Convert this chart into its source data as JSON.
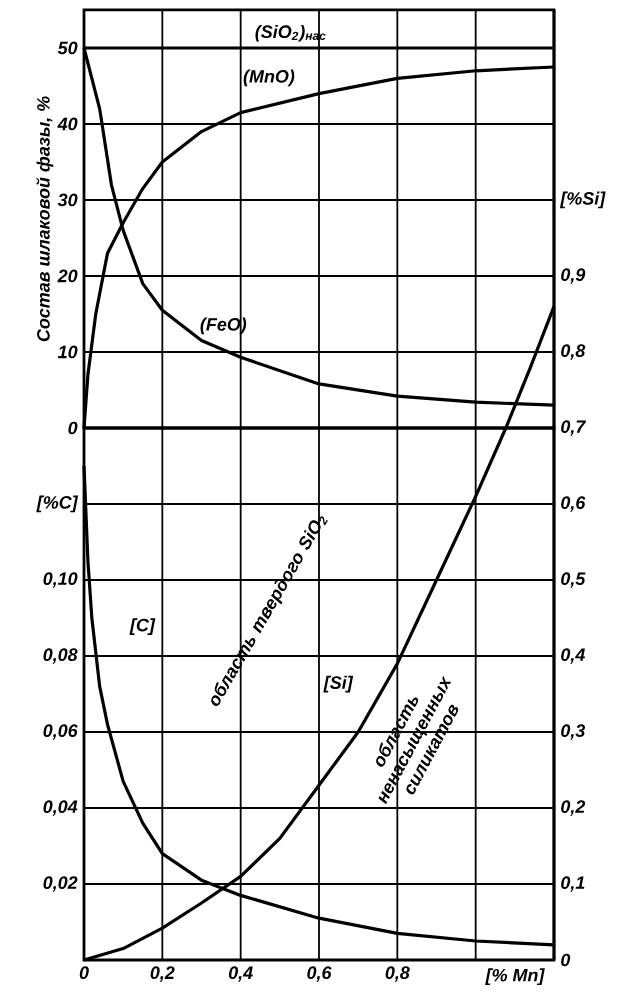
{
  "chart_data": [
    {
      "type": "line",
      "ylabel": "Состав шлаковой фазы, %",
      "xlim": [
        0,
        1.2
      ],
      "xticks": [
        0,
        0.2,
        0.4,
        0.6,
        0.8,
        1.0
      ],
      "ylim": [
        0,
        55
      ],
      "yticks": [
        0,
        10,
        20,
        30,
        40,
        50
      ],
      "y2lim": [
        0.7,
        1.25
      ],
      "y2ticks": [
        {
          "value": 0.7,
          "label": "0,7"
        },
        {
          "value": 0.8,
          "label": "0,8"
        },
        {
          "value": 0.9,
          "label": "0,9"
        },
        {
          "value": 1.0,
          "label": "[%Si]"
        }
      ],
      "tick_labels": "y",
      "grid": true,
      "ref_lines": [
        {
          "axis": "y",
          "value": 50,
          "label": "(SiO$_{2}$)$_{нас}$",
          "color": "#000000",
          "line_style": "solid"
        }
      ],
      "line_style": "solid",
      "marker": "none",
      "series": [
        {
          "name": "(MnO)",
          "color": "#000000",
          "x": [
            0,
            0.01,
            0.03,
            0.06,
            0.1,
            0.15,
            0.2,
            0.3,
            0.4,
            0.6,
            0.8,
            1.0,
            1.2
          ],
          "values": [
            0,
            7,
            15,
            23,
            27,
            31.5,
            35,
            39,
            41.5,
            44,
            46,
            47,
            47.5
          ]
        },
        {
          "name": "(FeO)",
          "color": "#000000",
          "x": [
            0,
            0.02,
            0.04,
            0.07,
            0.1,
            0.15,
            0.2,
            0.3,
            0.4,
            0.6,
            0.8,
            1.0,
            1.2
          ],
          "values": [
            50,
            46,
            42,
            32,
            26,
            19,
            15.5,
            11.5,
            9.3,
            5.8,
            4.2,
            3.4,
            3
          ]
        },
        {
          "color": "#000000",
          "axis": "y2",
          "x": [
            1.077,
            1.14,
            1.2
          ],
          "values": [
            0.7,
            0.78,
            0.86
          ]
        }
      ]
    },
    {
      "type": "line",
      "xlabel": "[% Mn]",
      "xlim": [
        0,
        1.2
      ],
      "xticks": [
        0,
        {
          "value": 0.2,
          "label": "0,2"
        },
        {
          "value": 0.4,
          "label": "0,4"
        },
        {
          "value": 0.6,
          "label": "0,6"
        },
        {
          "value": 0.8,
          "label": "0,8"
        },
        {
          "value": 1.0,
          "label": null
        }
      ],
      "ylim": [
        0,
        0.14
      ],
      "yticks": [
        {
          "value": 0.02,
          "label": "0,02"
        },
        {
          "value": 0.04,
          "label": "0,04"
        },
        {
          "value": 0.06,
          "label": "0,06"
        },
        {
          "value": 0.08,
          "label": "0,08"
        },
        {
          "value": 0.1,
          "label": "0,10"
        },
        {
          "value": 0.12,
          "label": "[%C]"
        }
      ],
      "y2lim": [
        0,
        0.7
      ],
      "y2ticks": [
        0,
        {
          "value": 0.1,
          "label": "0,1"
        },
        {
          "value": 0.2,
          "label": "0,2"
        },
        {
          "value": 0.3,
          "label": "0,3"
        },
        {
          "value": 0.4,
          "label": "0,4"
        },
        {
          "value": 0.5,
          "label": "0,5"
        },
        {
          "value": 0.6,
          "label": "0,6"
        }
      ],
      "grid": true,
      "line_style": "solid",
      "marker": "none",
      "annotations": [
        "область твердого SiO$_{2}$",
        "область ненасыщенных силикатов"
      ],
      "series": [
        {
          "name": "[C]",
          "color": "#000000",
          "x": [
            0,
            0.01,
            0.02,
            0.04,
            0.06,
            0.1,
            0.15,
            0.2,
            0.3,
            0.4,
            0.6,
            0.8,
            1.0,
            1.2
          ],
          "values": [
            0.13,
            0.105,
            0.09,
            0.072,
            0.062,
            0.047,
            0.036,
            0.028,
            0.021,
            0.017,
            0.011,
            0.007,
            0.005,
            0.004
          ]
        },
        {
          "name": "[Si]",
          "color": "#000000",
          "axis": "y2",
          "x": [
            0,
            0.1,
            0.2,
            0.3,
            0.4,
            0.5,
            0.6,
            0.7,
            0.8,
            0.9,
            1.0,
            1.077
          ],
          "values": [
            0,
            0.015,
            0.042,
            0.075,
            0.11,
            0.16,
            0.23,
            0.3,
            0.39,
            0.5,
            0.61,
            0.7
          ]
        }
      ]
    }
  ]
}
